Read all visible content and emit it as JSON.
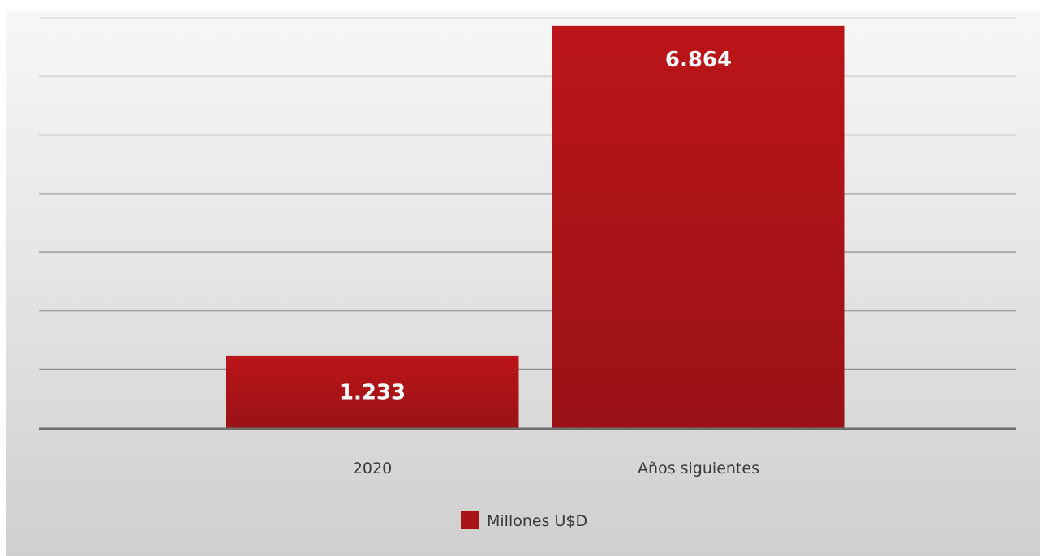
{
  "chart_data": {
    "type": "bar",
    "title": "",
    "categories": [
      "2020",
      "Años siguientes"
    ],
    "series": [
      {
        "name": "Millones U$D",
        "values": [
          1233,
          6864
        ],
        "value_labels": [
          "1.233",
          "6.864"
        ],
        "color": "#a81418"
      }
    ],
    "ylim": [
      0,
      7000
    ],
    "y_tick_step": 1000,
    "grid": true,
    "legend_position": "bottom"
  }
}
